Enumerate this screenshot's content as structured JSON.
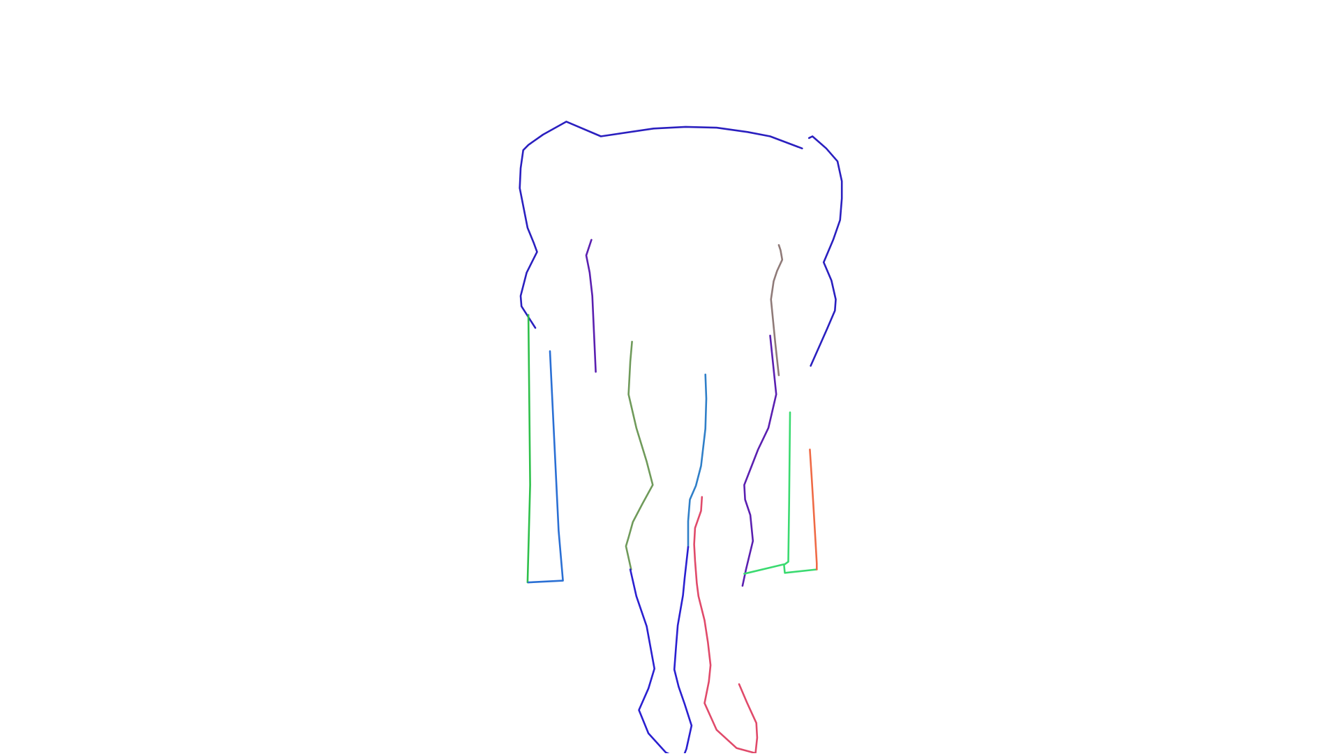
{
  "strokes": [
    {
      "name": "outline-head-shoulders-stroke",
      "color": "#2a1fbf"
    },
    {
      "name": "outline-right-shoulder-stroke",
      "color": "#2a1fbf"
    },
    {
      "name": "inner-left-arm-stroke",
      "color": "#5a1fb0"
    },
    {
      "name": "inner-right-arm-stroke",
      "color": "#8f7a78"
    },
    {
      "name": "left-rectangle-outer-stroke",
      "color": "#2ec04a"
    },
    {
      "name": "left-rectangle-inner-stroke",
      "color": "#2a6fd4"
    },
    {
      "name": "inner-left-leg-upper-stroke",
      "color": "#6f9a5a"
    },
    {
      "name": "inner-leg-stroke",
      "color": "#2f7fc8"
    },
    {
      "name": "right-leg-outline-stroke",
      "color": "#5a1fb0"
    },
    {
      "name": "right-rectangle-stroke",
      "color": "#3ada70"
    },
    {
      "name": "right-rectangle-edge-stroke",
      "color": "#ef6a45"
    },
    {
      "name": "left-foot-stroke",
      "color": "#2a1fd0"
    },
    {
      "name": "right-leg-inner-stroke",
      "color": "#e04a6a"
    }
  ]
}
